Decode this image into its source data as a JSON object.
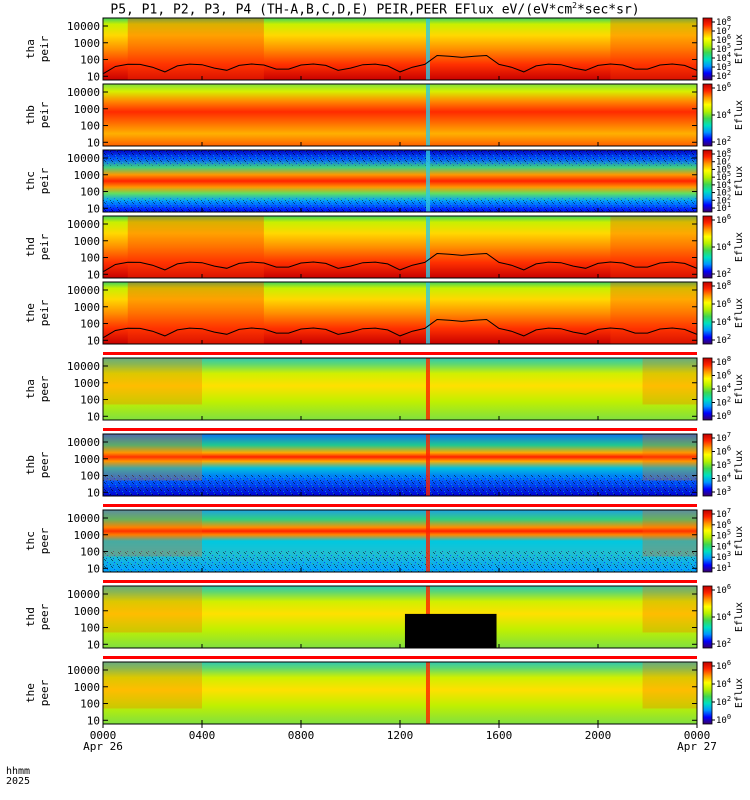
{
  "title": {
    "main": "P5, P1, P2, P3, P4 (TH-A,B,C,D,E) PEIR,PEER EFlux eV/(eV*cm",
    "sup": "2",
    "tail": "*sec*sr)"
  },
  "colors": {
    "colorbar": [
      "#3a0068",
      "#0000ff",
      "#0096ff",
      "#00e0c0",
      "#3ed650",
      "#b4f000",
      "#ffff00",
      "#ff9a00",
      "#ff2400",
      "#c00000"
    ],
    "flag_bar": "#ff0000",
    "fill_below_bound": "#000000"
  },
  "chart_data": {
    "type": "heatmap",
    "xaxis": {
      "row_label": "hhmm",
      "year": "2025",
      "ticks": [
        "0000",
        "0400",
        "0800",
        "1200",
        "1600",
        "2000",
        "0000"
      ],
      "date_labels": [
        {
          "tick": 0,
          "label": "Apr 26"
        },
        {
          "tick": 6,
          "label": "Apr 27"
        }
      ],
      "xlim_hours": [
        0,
        24
      ]
    },
    "y_scale": "log",
    "yticks": [
      "10",
      "100",
      "1000",
      "10000"
    ],
    "colorbar_label": "Eflux",
    "panels": [
      {
        "probe": "tha",
        "species": "peir",
        "ylabel": [
          "tha",
          "peir"
        ],
        "cbar_exponents": [
          "2",
          "3",
          "4",
          "5",
          "6",
          "7",
          "8"
        ],
        "flag_bar": false,
        "boundary_line": true,
        "fill_below": false
      },
      {
        "probe": "thb",
        "species": "peir",
        "ylabel": [
          "thb",
          "peir"
        ],
        "cbar_exponents": [
          "2",
          "4",
          "6"
        ],
        "flag_bar": false,
        "boundary_line": false,
        "fill_below": false
      },
      {
        "probe": "thc",
        "species": "peir",
        "ylabel": [
          "thc",
          "peir"
        ],
        "cbar_exponents": [
          "1",
          "2",
          "3",
          "4",
          "5",
          "6",
          "7",
          "8"
        ],
        "flag_bar": false,
        "boundary_line": false,
        "fill_below": false
      },
      {
        "probe": "thd",
        "species": "peir",
        "ylabel": [
          "thd",
          "peir"
        ],
        "cbar_exponents": [
          "2",
          "4",
          "6"
        ],
        "flag_bar": false,
        "boundary_line": true,
        "fill_below": false
      },
      {
        "probe": "the",
        "species": "peir",
        "ylabel": [
          "the",
          "peir"
        ],
        "cbar_exponents": [
          "2",
          "4",
          "6",
          "8"
        ],
        "flag_bar": false,
        "boundary_line": true,
        "fill_below": false
      },
      {
        "probe": "tha",
        "species": "peer",
        "ylabel": [
          "tha",
          "peer"
        ],
        "cbar_exponents": [
          "0",
          "2",
          "4",
          "6",
          "8"
        ],
        "flag_bar": true,
        "boundary_line": false,
        "fill_below": false
      },
      {
        "probe": "thb",
        "species": "peer",
        "ylabel": [
          "thb",
          "peer"
        ],
        "cbar_exponents": [
          "3",
          "4",
          "5",
          "6",
          "7"
        ],
        "flag_bar": true,
        "boundary_line": false,
        "fill_below": false
      },
      {
        "probe": "thc",
        "species": "peer",
        "ylabel": [
          "thc",
          "peer"
        ],
        "cbar_exponents": [
          "1",
          "3",
          "4",
          "5",
          "6",
          "7"
        ],
        "flag_bar": true,
        "boundary_line": false,
        "fill_below": false
      },
      {
        "probe": "thd",
        "species": "peer",
        "ylabel": [
          "thd",
          "peer"
        ],
        "cbar_exponents": [
          "2",
          "4",
          "6"
        ],
        "flag_bar": true,
        "boundary_line": false,
        "fill_below": true
      },
      {
        "probe": "the",
        "species": "peer",
        "ylabel": [
          "the",
          "peer"
        ],
        "cbar_exponents": [
          "0",
          "2",
          "4",
          "6"
        ],
        "flag_bar": true,
        "boundary_line": false,
        "fill_below": false
      }
    ]
  }
}
